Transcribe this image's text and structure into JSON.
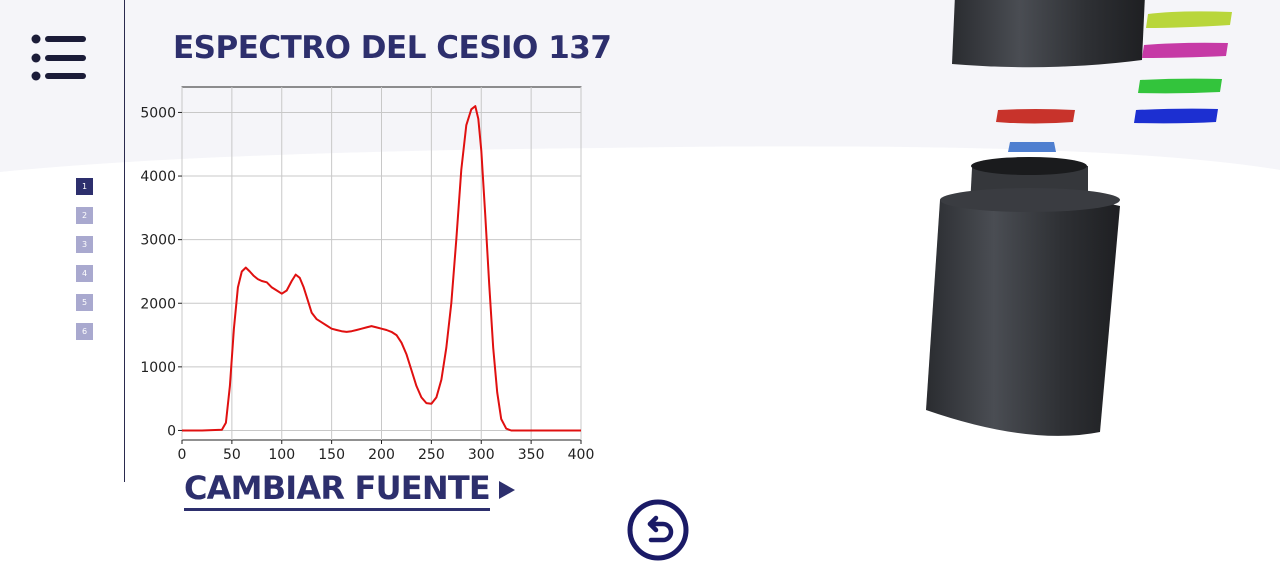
{
  "header": {
    "title": "ESPECTRO DEL CESIO 137"
  },
  "pager": {
    "pages": [
      "1",
      "2",
      "3",
      "4",
      "5",
      "6"
    ],
    "active_index": 0
  },
  "actions": {
    "change_source_label": "CAMBIAR FUENTE"
  },
  "icons": {
    "menu": "list-menu-icon",
    "change_source_arrow": "play-arrow-icon",
    "back": "undo-arrow-icon"
  },
  "colors": {
    "accent": "#2d2f6d",
    "pager_inactive": "#a9a9cf",
    "spectrum_line": "#e01010"
  },
  "chart_data": {
    "type": "line",
    "title": "",
    "xlabel": "",
    "ylabel": "",
    "xlim": [
      0,
      400
    ],
    "ylim": [
      -150,
      5400
    ],
    "xticks": [
      0,
      50,
      100,
      150,
      200,
      250,
      300,
      350,
      400
    ],
    "yticks": [
      0,
      1000,
      2000,
      3000,
      4000,
      5000
    ],
    "grid": true,
    "series": [
      {
        "x": [
          0,
          20,
          40,
          44,
          48,
          52,
          56,
          60,
          64,
          68,
          72,
          76,
          80,
          85,
          90,
          95,
          100,
          105,
          110,
          114,
          118,
          122,
          126,
          130,
          135,
          140,
          145,
          150,
          155,
          160,
          165,
          170,
          175,
          180,
          185,
          190,
          195,
          200,
          205,
          210,
          215,
          220,
          225,
          230,
          235,
          240,
          245,
          250,
          255,
          260,
          265,
          270,
          275,
          280,
          285,
          290,
          294,
          297,
          300,
          304,
          308,
          312,
          316,
          320,
          325,
          330,
          335,
          340,
          350,
          360,
          380,
          400
        ],
        "values": [
          0,
          0,
          10,
          120,
          700,
          1600,
          2250,
          2500,
          2560,
          2500,
          2430,
          2380,
          2350,
          2330,
          2250,
          2200,
          2150,
          2200,
          2350,
          2450,
          2400,
          2250,
          2050,
          1850,
          1750,
          1700,
          1650,
          1600,
          1580,
          1560,
          1550,
          1560,
          1580,
          1600,
          1620,
          1640,
          1620,
          1600,
          1580,
          1550,
          1500,
          1380,
          1200,
          950,
          700,
          520,
          430,
          420,
          520,
          800,
          1300,
          2000,
          3000,
          4100,
          4800,
          5050,
          5100,
          4900,
          4400,
          3400,
          2300,
          1300,
          600,
          180,
          30,
          0,
          0,
          0,
          0,
          0,
          0,
          0
        ]
      }
    ]
  }
}
